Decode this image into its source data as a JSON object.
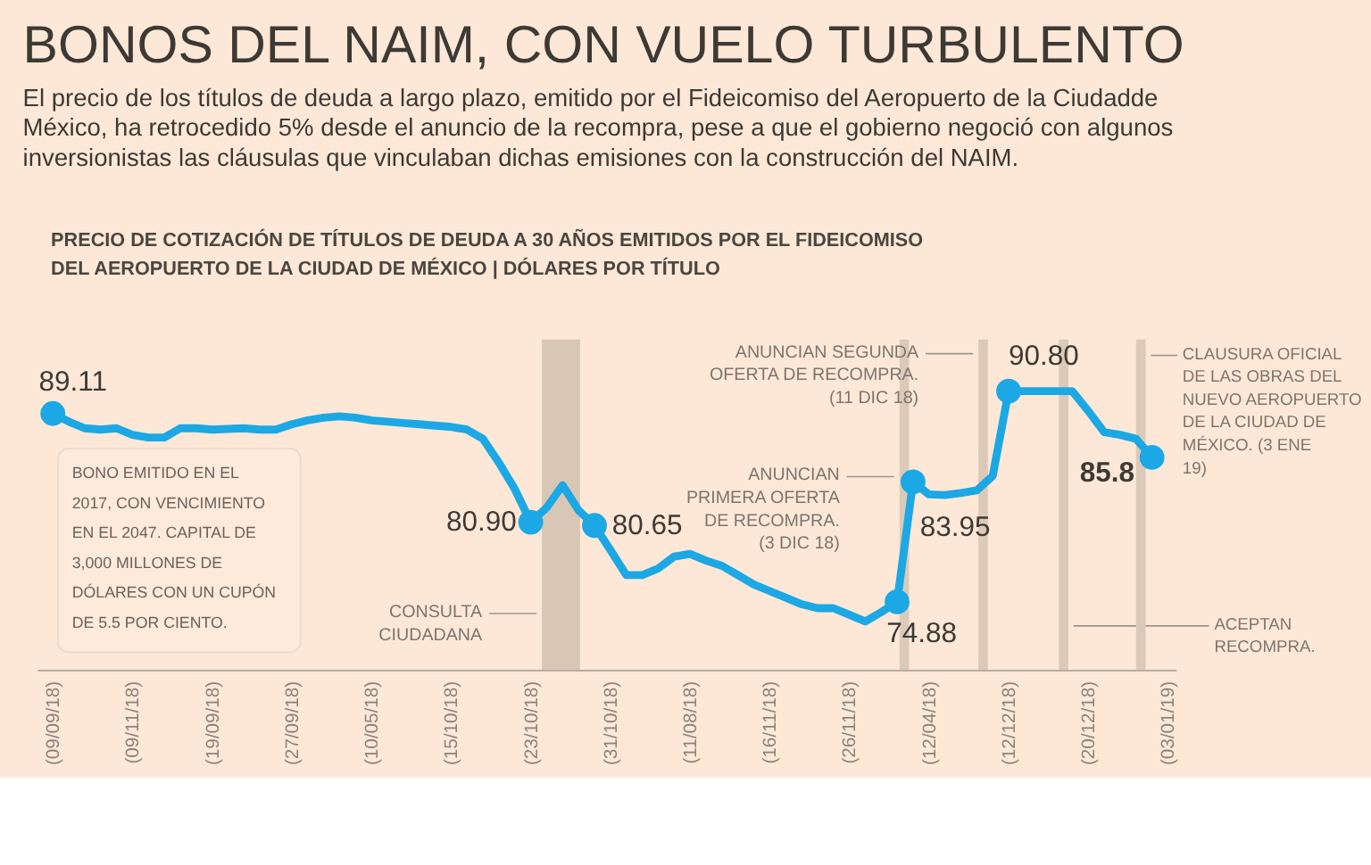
{
  "chart_data": {
    "type": "line",
    "title": "BONOS DEL NAIM, CON VUELO TURBULENTO",
    "subtitle": "El precio de los títulos de deuda a largo plazo, emitido por el Fideicomiso del Aeropuerto de la Ciudadde México, ha retrocedido 5% desde el anuncio de la recompra, pese a que el gobierno negoció con algunos inversionistas las cláusulas que vinculaban dichas emisiones con la construcción del NAIM.",
    "annotations": [
      "PRECIO DE COTIZACIÓN DE TÍTULOS DE DEUDA A 30 AÑOS EMITIDOS POR EL FIDEICOMISO DEL AEROPUERTO DE LA CIUDAD DE MÉXICO | DÓLARES POR TÍTULO",
      "BONO EMITIDO EN EL 2017, CON VENCIMIENTO EN EL 2047. CAPITAL DE 3,000 MILLONES DE DÓLARES CON UN CUPÓN DE 5.5 POR CIENTO.",
      "CONSULTA CIUDADANA",
      "ANUNCIAN PRIMERA OFERTA DE RECOMPRA. (3 DIC 18)",
      "ANUNCIAN SEGUNDA OFERTA DE RECOMPRA. (11 DIC 18)",
      "ACEPTAN RECOMPRA.",
      "CLAUSURA OFICIAL DE LAS OBRAS DEL NUEVO AEROPUERTO DE LA CIUDAD DE MÉXICO. (3 ENE 19)"
    ],
    "categories": [
      "(09/09/18)",
      null,
      null,
      null,
      null,
      "(09/11/18)",
      null,
      null,
      null,
      null,
      "(19/09/18)",
      null,
      null,
      null,
      null,
      "(27/09/18)",
      null,
      null,
      null,
      null,
      "(10/05/18)",
      null,
      null,
      null,
      null,
      "(15/10/18)",
      null,
      null,
      null,
      null,
      "(23/10/18)",
      null,
      null,
      null,
      null,
      "(31/10/18)",
      null,
      null,
      null,
      null,
      "(11/08/18)",
      null,
      null,
      null,
      null,
      "(16/11/18)",
      null,
      null,
      null,
      null,
      "(26/11/18)",
      null,
      null,
      null,
      null,
      "(12/04/18)",
      null,
      null,
      null,
      null,
      "(12/12/18)",
      null,
      null,
      null,
      null,
      "(20/12/18)",
      null,
      null,
      null,
      null,
      "(03/01/19)"
    ],
    "tick_labels": "x",
    "line_style": "solid",
    "series": [
      {
        "color": "#1ba8e4",
        "values": [
          89.11,
          88.5,
          88.0,
          87.9,
          88.0,
          87.5,
          87.3,
          87.3,
          88.0,
          88.0,
          87.9,
          87.95,
          88.0,
          87.9,
          87.9,
          88.3,
          88.6,
          88.8,
          88.9,
          88.8,
          88.6,
          88.5,
          88.4,
          88.3,
          88.2,
          88.1,
          87.9,
          87.2,
          85.4,
          83.4,
          80.9,
          82.0,
          83.7,
          81.8,
          80.65,
          78.8,
          76.9,
          76.9,
          77.4,
          78.3,
          78.5,
          78.0,
          77.6,
          76.9,
          76.2,
          75.7,
          75.2,
          74.7,
          74.4,
          74.4,
          73.9,
          73.4,
          74.1,
          74.88,
          83.95,
          83.0,
          82.95,
          83.1,
          83.3,
          84.4,
          90.8,
          90.8,
          90.8,
          90.8,
          90.8,
          89.3,
          87.7,
          87.5,
          87.2,
          85.8,
          null
        ],
        "value_labels": [
          "89.11",
          null,
          null,
          null,
          null,
          null,
          null,
          null,
          null,
          null,
          null,
          null,
          null,
          null,
          null,
          null,
          null,
          null,
          null,
          null,
          null,
          null,
          null,
          null,
          null,
          null,
          null,
          null,
          null,
          null,
          "80.90",
          null,
          null,
          null,
          "80.65",
          null,
          null,
          null,
          null,
          null,
          null,
          null,
          null,
          null,
          null,
          null,
          null,
          null,
          null,
          null,
          null,
          null,
          null,
          "74.88",
          "83.95",
          null,
          null,
          null,
          null,
          null,
          "90.80",
          null,
          null,
          null,
          null,
          null,
          null,
          null,
          null,
          "85.8",
          null
        ]
      }
    ]
  }
}
